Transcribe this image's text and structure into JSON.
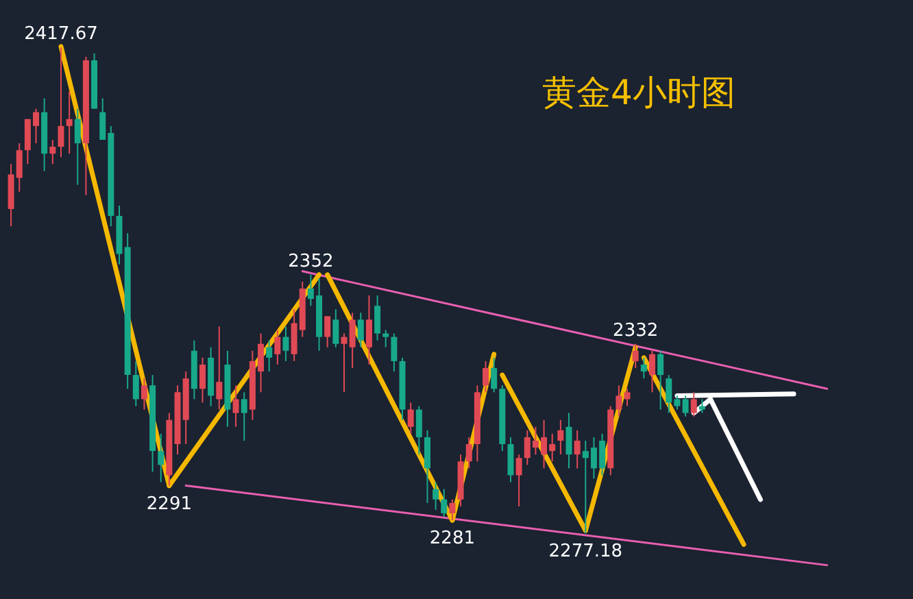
{
  "chart_data": {
    "type": "candlestick",
    "title": "黄金4小时图",
    "categories": [
      null,
      null,
      null,
      null,
      null,
      null,
      null,
      null,
      null,
      null,
      null,
      null,
      null,
      null,
      null,
      null,
      null,
      null,
      null,
      null,
      null,
      null,
      null,
      null,
      null,
      null,
      null,
      null,
      null,
      null,
      null,
      null,
      null,
      null,
      null,
      null,
      null,
      null,
      null,
      null,
      null,
      null,
      null,
      null,
      null,
      null,
      null,
      null,
      null,
      null,
      null,
      null,
      null,
      null,
      null,
      null,
      null,
      null,
      null,
      null,
      null,
      null,
      null,
      null,
      null,
      null,
      null,
      null,
      null,
      null,
      null,
      null,
      null,
      null,
      null,
      null,
      null,
      null,
      null,
      null,
      null,
      null,
      null,
      null,
      null,
      null,
      null,
      null,
      null,
      null,
      null,
      null,
      null,
      null,
      null,
      null,
      null,
      null,
      null,
      null,
      null,
      null,
      null,
      null,
      null,
      null,
      null,
      null
    ],
    "colors": [
      "#e04a55",
      "#e04a55",
      "#e04a55",
      "#e04a55",
      "#18a88a",
      "#e04a55",
      "#e04a55",
      "#e04a55",
      "#18a88a",
      "#e04a55",
      "#18a88a",
      "#18a88a",
      "#18a88a",
      "#18a88a",
      "#18a88a",
      "#18a88a",
      "#e04a55",
      "#18a88a",
      "#18a88a",
      "#e04a55",
      "#e04a55",
      "#e04a55",
      "#18a88a",
      "#e04a55",
      "#18a88a",
      "#e04a55",
      "#18a88a",
      "#e04a55",
      "#18a88a",
      "#e04a55",
      "#e04a55",
      "#18a88a",
      "#e04a55",
      "#18a88a",
      "#e04a55",
      "#e04a55",
      "#18a88a",
      "#18a88a",
      "#e04a55",
      "#18a88a",
      "#e04a55",
      "#e04a55",
      "#18a88a",
      "#e04a55",
      "#18a88a",
      "#18a88a",
      "#18a88a",
      "#18a88a",
      "#e04a55",
      "#18a88a",
      "#18a88a",
      "#18a88a",
      "#18a88a",
      "#e04a55",
      "#e04a55",
      "#e04a55",
      "#e04a55",
      "#e04a55",
      "#18a88a",
      "#18a88a",
      "#18a88a",
      "#e04a55",
      "#e04a55",
      "#e04a55",
      "#e04a55",
      "#e04a55",
      "#e04a55",
      "#18a88a",
      "#e04a55",
      "#18a88a",
      "#18a88a",
      "#18a88a",
      "#e04a55",
      "#e04a55",
      "#e04a55",
      "#e04a55",
      "#18a88a",
      "#e04a55",
      "#18a88a",
      "#18a88a",
      "#18a88a",
      "#18a88a",
      "#e04a55",
      "#18a88a",
      null,
      null,
      null,
      null,
      null,
      null,
      null,
      null,
      null,
      null,
      null,
      null,
      null,
      null,
      null,
      null,
      null,
      null,
      null,
      null,
      null,
      null,
      null,
      null
    ],
    "ohlc": [
      [
        2371,
        2384,
        2366,
        2381
      ],
      [
        2380,
        2390,
        2376,
        2388
      ],
      [
        2388,
        2397,
        2384,
        2397
      ],
      [
        2395,
        2400,
        2390,
        2399
      ],
      [
        2399,
        2403,
        2382,
        2387
      ],
      [
        2387,
        2391,
        2384,
        2389
      ],
      [
        2389,
        2417.67,
        2386,
        2395
      ],
      [
        2395,
        2405,
        2387,
        2397
      ],
      [
        2397,
        2400,
        2378,
        2390
      ],
      [
        2390,
        2415,
        2375,
        2414
      ],
      [
        2414,
        2416,
        2400,
        2400
      ],
      [
        2399,
        2403,
        2391,
        2391
      ],
      [
        2393,
        2395,
        2366,
        2369
      ],
      [
        2369,
        2372,
        2355,
        2358
      ],
      [
        2360,
        2364,
        2319,
        2323
      ],
      [
        2323,
        2327,
        2314,
        2316
      ],
      [
        2316,
        2322,
        2313,
        2320
      ],
      [
        2320,
        2323,
        2295,
        2301
      ],
      [
        2301,
        2306,
        2292,
        2297
      ],
      [
        2294,
        2312,
        2291,
        2310
      ],
      [
        2303,
        2320,
        2300,
        2318
      ],
      [
        2310,
        2324,
        2303,
        2322
      ],
      [
        2330,
        2333,
        2316,
        2319
      ],
      [
        2319,
        2328,
        2315,
        2326
      ],
      [
        2328,
        2331,
        2314,
        2317
      ],
      [
        2316,
        2337,
        2313,
        2321
      ],
      [
        2326,
        2330,
        2308,
        2313
      ],
      [
        2312,
        2320,
        2308,
        2316
      ],
      [
        2316,
        2318,
        2304,
        2312
      ],
      [
        2313,
        2330,
        2310,
        2327
      ],
      [
        2324,
        2335,
        2318,
        2332
      ],
      [
        2331,
        2333,
        2324,
        2328
      ],
      [
        2329,
        2336,
        2326,
        2334
      ],
      [
        2334,
        2337,
        2327,
        2330
      ],
      [
        2329,
        2342,
        2327,
        2338
      ],
      [
        2336,
        2350,
        2334,
        2348
      ],
      [
        2348,
        2352,
        2343,
        2345
      ],
      [
        2346,
        2351,
        2330,
        2334
      ],
      [
        2334,
        2340,
        2331,
        2340
      ],
      [
        2339,
        2342,
        2331,
        2332
      ],
      [
        2332,
        2335,
        2318,
        2334
      ],
      [
        2331,
        2341,
        2325,
        2339
      ],
      [
        2339,
        2341,
        2331,
        2333
      ],
      [
        2331,
        2346,
        2326,
        2339
      ],
      [
        2343,
        2346,
        2333,
        2335
      ],
      [
        2335,
        2336,
        2331,
        2334
      ],
      [
        2334,
        2335,
        2324,
        2327
      ],
      [
        2327,
        2328,
        2310,
        2313
      ],
      [
        2308,
        2315,
        2306,
        2313
      ],
      [
        2313,
        2314,
        2300,
        2305
      ],
      [
        2305,
        2307,
        2286,
        2296
      ],
      [
        2290,
        2292,
        2284,
        2287
      ],
      [
        2287,
        2290,
        2282,
        2283
      ],
      [
        2283,
        2287,
        2281,
        2286
      ],
      [
        2287,
        2300,
        2285,
        2298
      ],
      [
        2298,
        2305,
        2296,
        2303
      ],
      [
        2303,
        2320,
        2298,
        2318
      ],
      [
        2320,
        2327,
        2318,
        2325
      ],
      [
        2325,
        2328,
        2318,
        2319
      ],
      [
        2319,
        2320,
        2301,
        2303
      ],
      [
        2303,
        2305,
        2292,
        2294
      ],
      [
        2294,
        2300,
        2285,
        2299
      ],
      [
        2299,
        2307,
        2297,
        2305
      ],
      [
        2302,
        2308,
        2300,
        2304
      ],
      [
        2300,
        2310,
        2296,
        2305
      ],
      [
        2301,
        2306,
        2298,
        2303
      ],
      [
        2304,
        2310,
        2300,
        2307
      ],
      [
        2308,
        2312,
        2296,
        2300
      ],
      [
        2300,
        2307,
        2296,
        2304
      ],
      [
        2301,
        2304,
        2277.18,
        2299
      ],
      [
        2302,
        2305,
        2293,
        2296
      ],
      [
        2304,
        2306,
        2294,
        2296
      ],
      [
        2296,
        2314,
        2294,
        2313
      ],
      [
        2313,
        2320,
        2311,
        2317
      ],
      [
        2316,
        2319,
        2314,
        2318
      ],
      [
        2327,
        2332,
        2325,
        2330
      ],
      [
        2326,
        2328,
        2322,
        2324
      ],
      [
        2323,
        2330,
        2318,
        2329
      ],
      [
        2329,
        2330,
        2313,
        2323
      ],
      [
        2322,
        2323,
        2312,
        2315
      ],
      [
        2316,
        2317,
        2313,
        2314
      ],
      [
        2316,
        2317,
        2311,
        2312
      ],
      [
        2312,
        2318,
        2311,
        2316
      ],
      [
        2314,
        2316,
        2312,
        2313
      ],
      null,
      null,
      null,
      null,
      null,
      null,
      null,
      null,
      null,
      null,
      null,
      null,
      null,
      null,
      null,
      null,
      null,
      null,
      null,
      null,
      null,
      null,
      null,
      null
    ],
    "series": [
      {
        "type": "line",
        "color": "#e85fb0",
        "values": [
          null,
          null,
          null,
          null,
          null,
          null,
          null,
          null,
          null,
          null,
          null,
          null,
          null,
          null,
          null,
          null,
          null,
          null,
          null,
          null,
          null,
          null,
          null,
          null,
          null,
          null,
          null,
          null,
          null,
          null,
          null,
          null,
          null,
          null,
          null,
          2353,
          null,
          null,
          null,
          null,
          null,
          null,
          null,
          null,
          null,
          null,
          null,
          null,
          null,
          null,
          null,
          null,
          null,
          null,
          null,
          null,
          null,
          null,
          null,
          null,
          null,
          null,
          null,
          null,
          null,
          null,
          null,
          null,
          null,
          null,
          null,
          null,
          null,
          null,
          null,
          null,
          null,
          null,
          null,
          null,
          null,
          null,
          null,
          null,
          null,
          null,
          null,
          null,
          null,
          null,
          null,
          null,
          null,
          null,
          null,
          null,
          null,
          null,
          2319,
          null,
          null,
          null,
          null,
          null,
          null,
          null,
          null,
          null
        ]
      },
      {
        "type": "line",
        "color": "#e85fb0",
        "values": [
          null,
          null,
          null,
          null,
          null,
          null,
          null,
          null,
          null,
          null,
          null,
          null,
          null,
          null,
          null,
          null,
          null,
          null,
          null,
          null,
          null,
          2291,
          null,
          null,
          null,
          null,
          null,
          null,
          null,
          null,
          null,
          null,
          null,
          null,
          null,
          null,
          null,
          null,
          null,
          null,
          null,
          null,
          null,
          null,
          null,
          null,
          null,
          null,
          null,
          null,
          null,
          null,
          null,
          null,
          null,
          null,
          null,
          null,
          null,
          null,
          null,
          null,
          null,
          null,
          null,
          null,
          null,
          null,
          null,
          null,
          null,
          null,
          null,
          null,
          null,
          null,
          null,
          null,
          null,
          null,
          null,
          null,
          null,
          null,
          null,
          null,
          null,
          null,
          null,
          null,
          null,
          null,
          null,
          null,
          null,
          null,
          null,
          null,
          2268,
          null,
          null,
          null,
          null,
          null,
          null,
          null,
          null,
          null
        ]
      },
      {
        "type": "line",
        "color": "#f5b800",
        "values": [
          null,
          null,
          null,
          null,
          null,
          null,
          2418,
          null,
          null,
          null,
          null,
          null,
          null,
          null,
          null,
          null,
          null,
          null,
          null,
          2291,
          null,
          null,
          null,
          null,
          null,
          null,
          null,
          null,
          null,
          null,
          null,
          null,
          null,
          null,
          null,
          null,
          null,
          null,
          null,
          null,
          null,
          null,
          null,
          null,
          null,
          null,
          null,
          null,
          null,
          null,
          null,
          null,
          null,
          null,
          null,
          null,
          null,
          null,
          null,
          null,
          null,
          null,
          null,
          null,
          null,
          null,
          null,
          null,
          null,
          null,
          null,
          null,
          null,
          null,
          null,
          null,
          null,
          null,
          null,
          null,
          null,
          null,
          null,
          null,
          null,
          null,
          null,
          null,
          null,
          null,
          null,
          null,
          null,
          null,
          null,
          null,
          null,
          null,
          null,
          null,
          null,
          null,
          null,
          null,
          null,
          null,
          null,
          null
        ]
      },
      {
        "type": "line",
        "color": "#f5b800",
        "values": [
          null,
          null,
          null,
          null,
          null,
          null,
          null,
          null,
          null,
          null,
          null,
          null,
          null,
          null,
          null,
          null,
          null,
          null,
          null,
          2291,
          null,
          null,
          null,
          null,
          null,
          null,
          null,
          null,
          null,
          null,
          null,
          null,
          null,
          null,
          null,
          null,
          null,
          2352,
          null,
          null,
          null,
          null,
          null,
          null,
          null,
          null,
          null,
          null,
          null,
          null,
          null,
          null,
          null,
          null,
          null,
          null,
          null,
          null,
          null,
          null,
          null,
          null,
          null,
          null,
          null,
          null,
          null,
          null,
          null,
          null,
          null,
          null,
          null,
          null,
          null,
          null,
          null,
          null,
          null,
          null,
          null,
          null,
          null,
          null,
          null,
          null,
          null,
          null,
          null,
          null,
          null,
          null,
          null,
          null,
          null,
          null,
          null,
          null,
          null,
          null,
          null,
          null,
          null,
          null,
          null,
          null,
          null,
          null
        ]
      },
      {
        "type": "line",
        "color": "#f5b800",
        "values": [
          null,
          null,
          null,
          null,
          null,
          null,
          null,
          null,
          null,
          null,
          null,
          null,
          null,
          null,
          null,
          null,
          null,
          null,
          null,
          null,
          null,
          null,
          null,
          null,
          null,
          null,
          null,
          null,
          null,
          null,
          null,
          null,
          null,
          null,
          null,
          null,
          null,
          null,
          2352,
          null,
          null,
          null,
          null,
          null,
          null,
          null,
          null,
          null,
          null,
          null,
          null,
          null,
          null,
          2281,
          null,
          null,
          null,
          null,
          null,
          null,
          null,
          null,
          null,
          null,
          null,
          null,
          null,
          null,
          null,
          null,
          null,
          null,
          null,
          null,
          null,
          null,
          null,
          null,
          null,
          null,
          null,
          null,
          null,
          null,
          null,
          null,
          null,
          null,
          null,
          null,
          null,
          null,
          null,
          null,
          null,
          null,
          null,
          null,
          null,
          null,
          null,
          null,
          null,
          null,
          null,
          null,
          null,
          null
        ]
      },
      {
        "type": "line",
        "color": "#f5b800",
        "values": [
          null,
          null,
          null,
          null,
          null,
          null,
          null,
          null,
          null,
          null,
          null,
          null,
          null,
          null,
          null,
          null,
          null,
          null,
          null,
          null,
          null,
          null,
          null,
          null,
          null,
          null,
          null,
          null,
          null,
          null,
          null,
          null,
          null,
          null,
          null,
          null,
          null,
          null,
          null,
          null,
          null,
          null,
          null,
          null,
          null,
          null,
          null,
          null,
          null,
          null,
          null,
          null,
          null,
          2281,
          null,
          null,
          null,
          null,
          2329,
          null,
          null,
          null,
          null,
          null,
          null,
          null,
          null,
          null,
          null,
          null,
          null,
          null,
          null,
          null,
          null,
          null,
          null,
          null,
          null,
          null,
          null,
          null,
          null,
          null,
          null,
          null,
          null,
          null,
          null,
          null,
          null,
          null,
          null,
          null,
          null,
          null,
          null,
          null,
          null,
          null,
          null,
          null,
          null,
          null,
          null,
          null,
          null,
          null
        ]
      },
      {
        "type": "line",
        "color": "#f5b800",
        "values": [
          null,
          null,
          null,
          null,
          null,
          null,
          null,
          null,
          null,
          null,
          null,
          null,
          null,
          null,
          null,
          null,
          null,
          null,
          null,
          null,
          null,
          null,
          null,
          null,
          null,
          null,
          null,
          null,
          null,
          null,
          null,
          null,
          null,
          null,
          null,
          null,
          null,
          null,
          null,
          null,
          null,
          null,
          null,
          null,
          null,
          null,
          null,
          null,
          null,
          null,
          null,
          null,
          null,
          null,
          null,
          null,
          null,
          null,
          null,
          2323,
          null,
          null,
          null,
          null,
          null,
          null,
          null,
          null,
          null,
          2278,
          null,
          null,
          null,
          null,
          null,
          null,
          null,
          null,
          null,
          null,
          null,
          null,
          null,
          null,
          null,
          null,
          null,
          null,
          null,
          null,
          null,
          null,
          null,
          null,
          null,
          null,
          null,
          null,
          null,
          null,
          null,
          null,
          null,
          null,
          null,
          null,
          null,
          null
        ]
      },
      {
        "type": "line",
        "color": "#f5b800",
        "values": [
          null,
          null,
          null,
          null,
          null,
          null,
          null,
          null,
          null,
          null,
          null,
          null,
          null,
          null,
          null,
          null,
          null,
          null,
          null,
          null,
          null,
          null,
          null,
          null,
          null,
          null,
          null,
          null,
          null,
          null,
          null,
          null,
          null,
          null,
          null,
          null,
          null,
          null,
          null,
          null,
          null,
          null,
          null,
          null,
          null,
          null,
          null,
          null,
          null,
          null,
          null,
          null,
          null,
          null,
          null,
          null,
          null,
          null,
          null,
          null,
          null,
          null,
          null,
          null,
          null,
          null,
          null,
          null,
          null,
          2278,
          null,
          null,
          null,
          null,
          null,
          2331,
          null,
          null,
          null,
          null,
          null,
          null,
          null,
          null,
          null,
          null,
          null,
          null,
          null,
          null,
          null,
          null,
          null,
          null,
          null,
          null,
          null,
          null,
          null,
          null,
          null,
          null,
          null,
          null,
          null,
          null,
          null,
          null
        ]
      },
      {
        "type": "line",
        "color": "#f5b800",
        "values": [
          null,
          null,
          null,
          null,
          null,
          null,
          null,
          null,
          null,
          null,
          null,
          null,
          null,
          null,
          null,
          null,
          null,
          null,
          null,
          null,
          null,
          null,
          null,
          null,
          null,
          null,
          null,
          null,
          null,
          null,
          null,
          null,
          null,
          null,
          null,
          null,
          null,
          null,
          null,
          null,
          null,
          null,
          null,
          null,
          null,
          null,
          null,
          null,
          null,
          null,
          null,
          null,
          null,
          null,
          null,
          null,
          null,
          null,
          null,
          null,
          null,
          null,
          null,
          null,
          null,
          null,
          null,
          null,
          null,
          null,
          null,
          null,
          null,
          null,
          null,
          null,
          2328,
          null,
          null,
          null,
          null,
          null,
          null,
          null,
          null,
          null,
          null,
          null,
          2274,
          null,
          null,
          null,
          null,
          null,
          null,
          null,
          null,
          null,
          null,
          null,
          null,
          null,
          null,
          null,
          null,
          null,
          null,
          null
        ]
      },
      {
        "type": "line",
        "color": "#ffffff",
        "values": [
          null,
          null,
          null,
          null,
          null,
          null,
          null,
          null,
          null,
          null,
          null,
          null,
          null,
          null,
          null,
          null,
          null,
          null,
          null,
          null,
          null,
          null,
          null,
          null,
          null,
          null,
          null,
          null,
          null,
          null,
          null,
          null,
          null,
          null,
          null,
          null,
          null,
          null,
          null,
          null,
          null,
          null,
          null,
          null,
          null,
          null,
          null,
          null,
          null,
          null,
          null,
          null,
          null,
          null,
          null,
          null,
          null,
          null,
          null,
          null,
          null,
          null,
          null,
          null,
          null,
          null,
          null,
          null,
          null,
          null,
          null,
          null,
          null,
          null,
          null,
          null,
          null,
          null,
          null,
          null,
          2317,
          null,
          null,
          null,
          null,
          null,
          null,
          null,
          null,
          null,
          null,
          null,
          null,
          null,
          2317.5,
          null,
          null,
          null,
          null,
          null,
          null,
          null,
          null,
          null,
          null,
          null,
          null,
          null
        ]
      },
      {
        "type": "line",
        "color": "#ffffff",
        "values": [
          null,
          null,
          null,
          null,
          null,
          null,
          null,
          null,
          null,
          null,
          null,
          null,
          null,
          null,
          null,
          null,
          null,
          null,
          null,
          null,
          null,
          null,
          null,
          null,
          null,
          null,
          null,
          null,
          null,
          null,
          null,
          null,
          null,
          null,
          null,
          null,
          null,
          null,
          null,
          null,
          null,
          null,
          null,
          null,
          null,
          null,
          null,
          null,
          null,
          null,
          null,
          null,
          null,
          null,
          null,
          null,
          null,
          null,
          null,
          null,
          null,
          null,
          null,
          null,
          null,
          null,
          null,
          null,
          null,
          null,
          null,
          null,
          null,
          null,
          null,
          null,
          null,
          null,
          null,
          null,
          null,
          null,
          2312,
          null,
          2316,
          null,
          null,
          null,
          null,
          null,
          null,
          null,
          null,
          null,
          null,
          null,
          null,
          null,
          null,
          null,
          null,
          null,
          null,
          null,
          null,
          null,
          null,
          null
        ]
      },
      {
        "type": "line",
        "color": "#ffffff",
        "values": [
          null,
          null,
          null,
          null,
          null,
          null,
          null,
          null,
          null,
          null,
          null,
          null,
          null,
          null,
          null,
          null,
          null,
          null,
          null,
          null,
          null,
          null,
          null,
          null,
          null,
          null,
          null,
          null,
          null,
          null,
          null,
          null,
          null,
          null,
          null,
          null,
          null,
          null,
          null,
          null,
          null,
          null,
          null,
          null,
          null,
          null,
          null,
          null,
          null,
          null,
          null,
          null,
          null,
          null,
          null,
          null,
          null,
          null,
          null,
          null,
          null,
          null,
          null,
          null,
          null,
          null,
          null,
          null,
          null,
          null,
          null,
          null,
          null,
          null,
          null,
          null,
          null,
          null,
          null,
          null,
          null,
          null,
          null,
          null,
          2316,
          null,
          null,
          null,
          null,
          null,
          2287,
          null,
          null,
          null,
          null,
          null,
          null,
          null,
          null,
          null,
          null,
          null,
          null,
          null,
          null,
          null,
          null,
          null
        ]
      }
    ],
    "annotations": [
      {
        "text": "2417.67",
        "y": 2417.67
      },
      {
        "text": "2291",
        "y": 2291
      },
      {
        "text": "2352",
        "y": 2352
      },
      {
        "text": "2281",
        "y": 2281
      },
      {
        "text": "2332",
        "y": 2332
      },
      {
        "text": "2277.18",
        "y": 2277.18
      }
    ]
  }
}
